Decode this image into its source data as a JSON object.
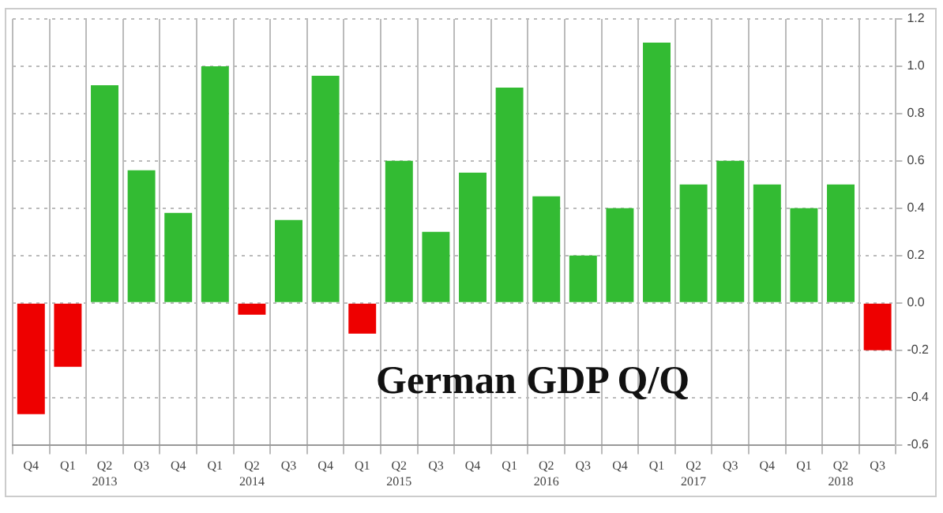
{
  "chart_data": {
    "type": "bar",
    "title": "German GDP Q/Q",
    "categories": [
      "Q4",
      "Q1",
      "Q2\n2013",
      "Q3",
      "Q4",
      "Q1",
      "Q2\n2014",
      "Q3",
      "Q4",
      "Q1",
      "Q2\n2015",
      "Q3",
      "Q4",
      "Q1",
      "Q2\n2016",
      "Q3",
      "Q4",
      "Q1",
      "Q2\n2017",
      "Q3",
      "Q4",
      "Q1",
      "Q2\n2018",
      "Q3"
    ],
    "values": [
      -0.47,
      -0.27,
      0.92,
      0.56,
      0.38,
      1.0,
      -0.05,
      0.35,
      0.96,
      -0.13,
      0.6,
      0.3,
      0.55,
      0.91,
      0.45,
      0.2,
      0.4,
      1.1,
      0.5,
      0.6,
      0.5,
      0.4,
      0.5,
      -0.2
    ],
    "colors": [
      "#ee0000",
      "#ee0000",
      "#33bb33",
      "#33bb33",
      "#33bb33",
      "#33bb33",
      "#ee0000",
      "#33bb33",
      "#33bb33",
      "#ee0000",
      "#33bb33",
      "#33bb33",
      "#33bb33",
      "#33bb33",
      "#33bb33",
      "#33bb33",
      "#33bb33",
      "#33bb33",
      "#33bb33",
      "#33bb33",
      "#33bb33",
      "#33bb33",
      "#33bb33",
      "#ee0000"
    ],
    "ylim": [
      -0.6,
      1.2
    ],
    "yticks": [
      {
        "value": 1.2,
        "label": "1.2"
      },
      {
        "value": 1.0,
        "label": "1.0"
      },
      {
        "value": 0.8,
        "label": "0.8"
      },
      {
        "value": 0.6,
        "label": "0.6"
      },
      {
        "value": 0.4,
        "label": "0.4"
      },
      {
        "value": 0.2,
        "label": "0.2"
      },
      {
        "value": 0,
        "label": "0.0"
      },
      {
        "value": -0.2,
        "label": "-0.2"
      },
      {
        "value": -0.4,
        "label": "-0.4"
      },
      {
        "value": -0.6,
        "label": "-0.6"
      }
    ],
    "grid": true,
    "legend": false
  }
}
